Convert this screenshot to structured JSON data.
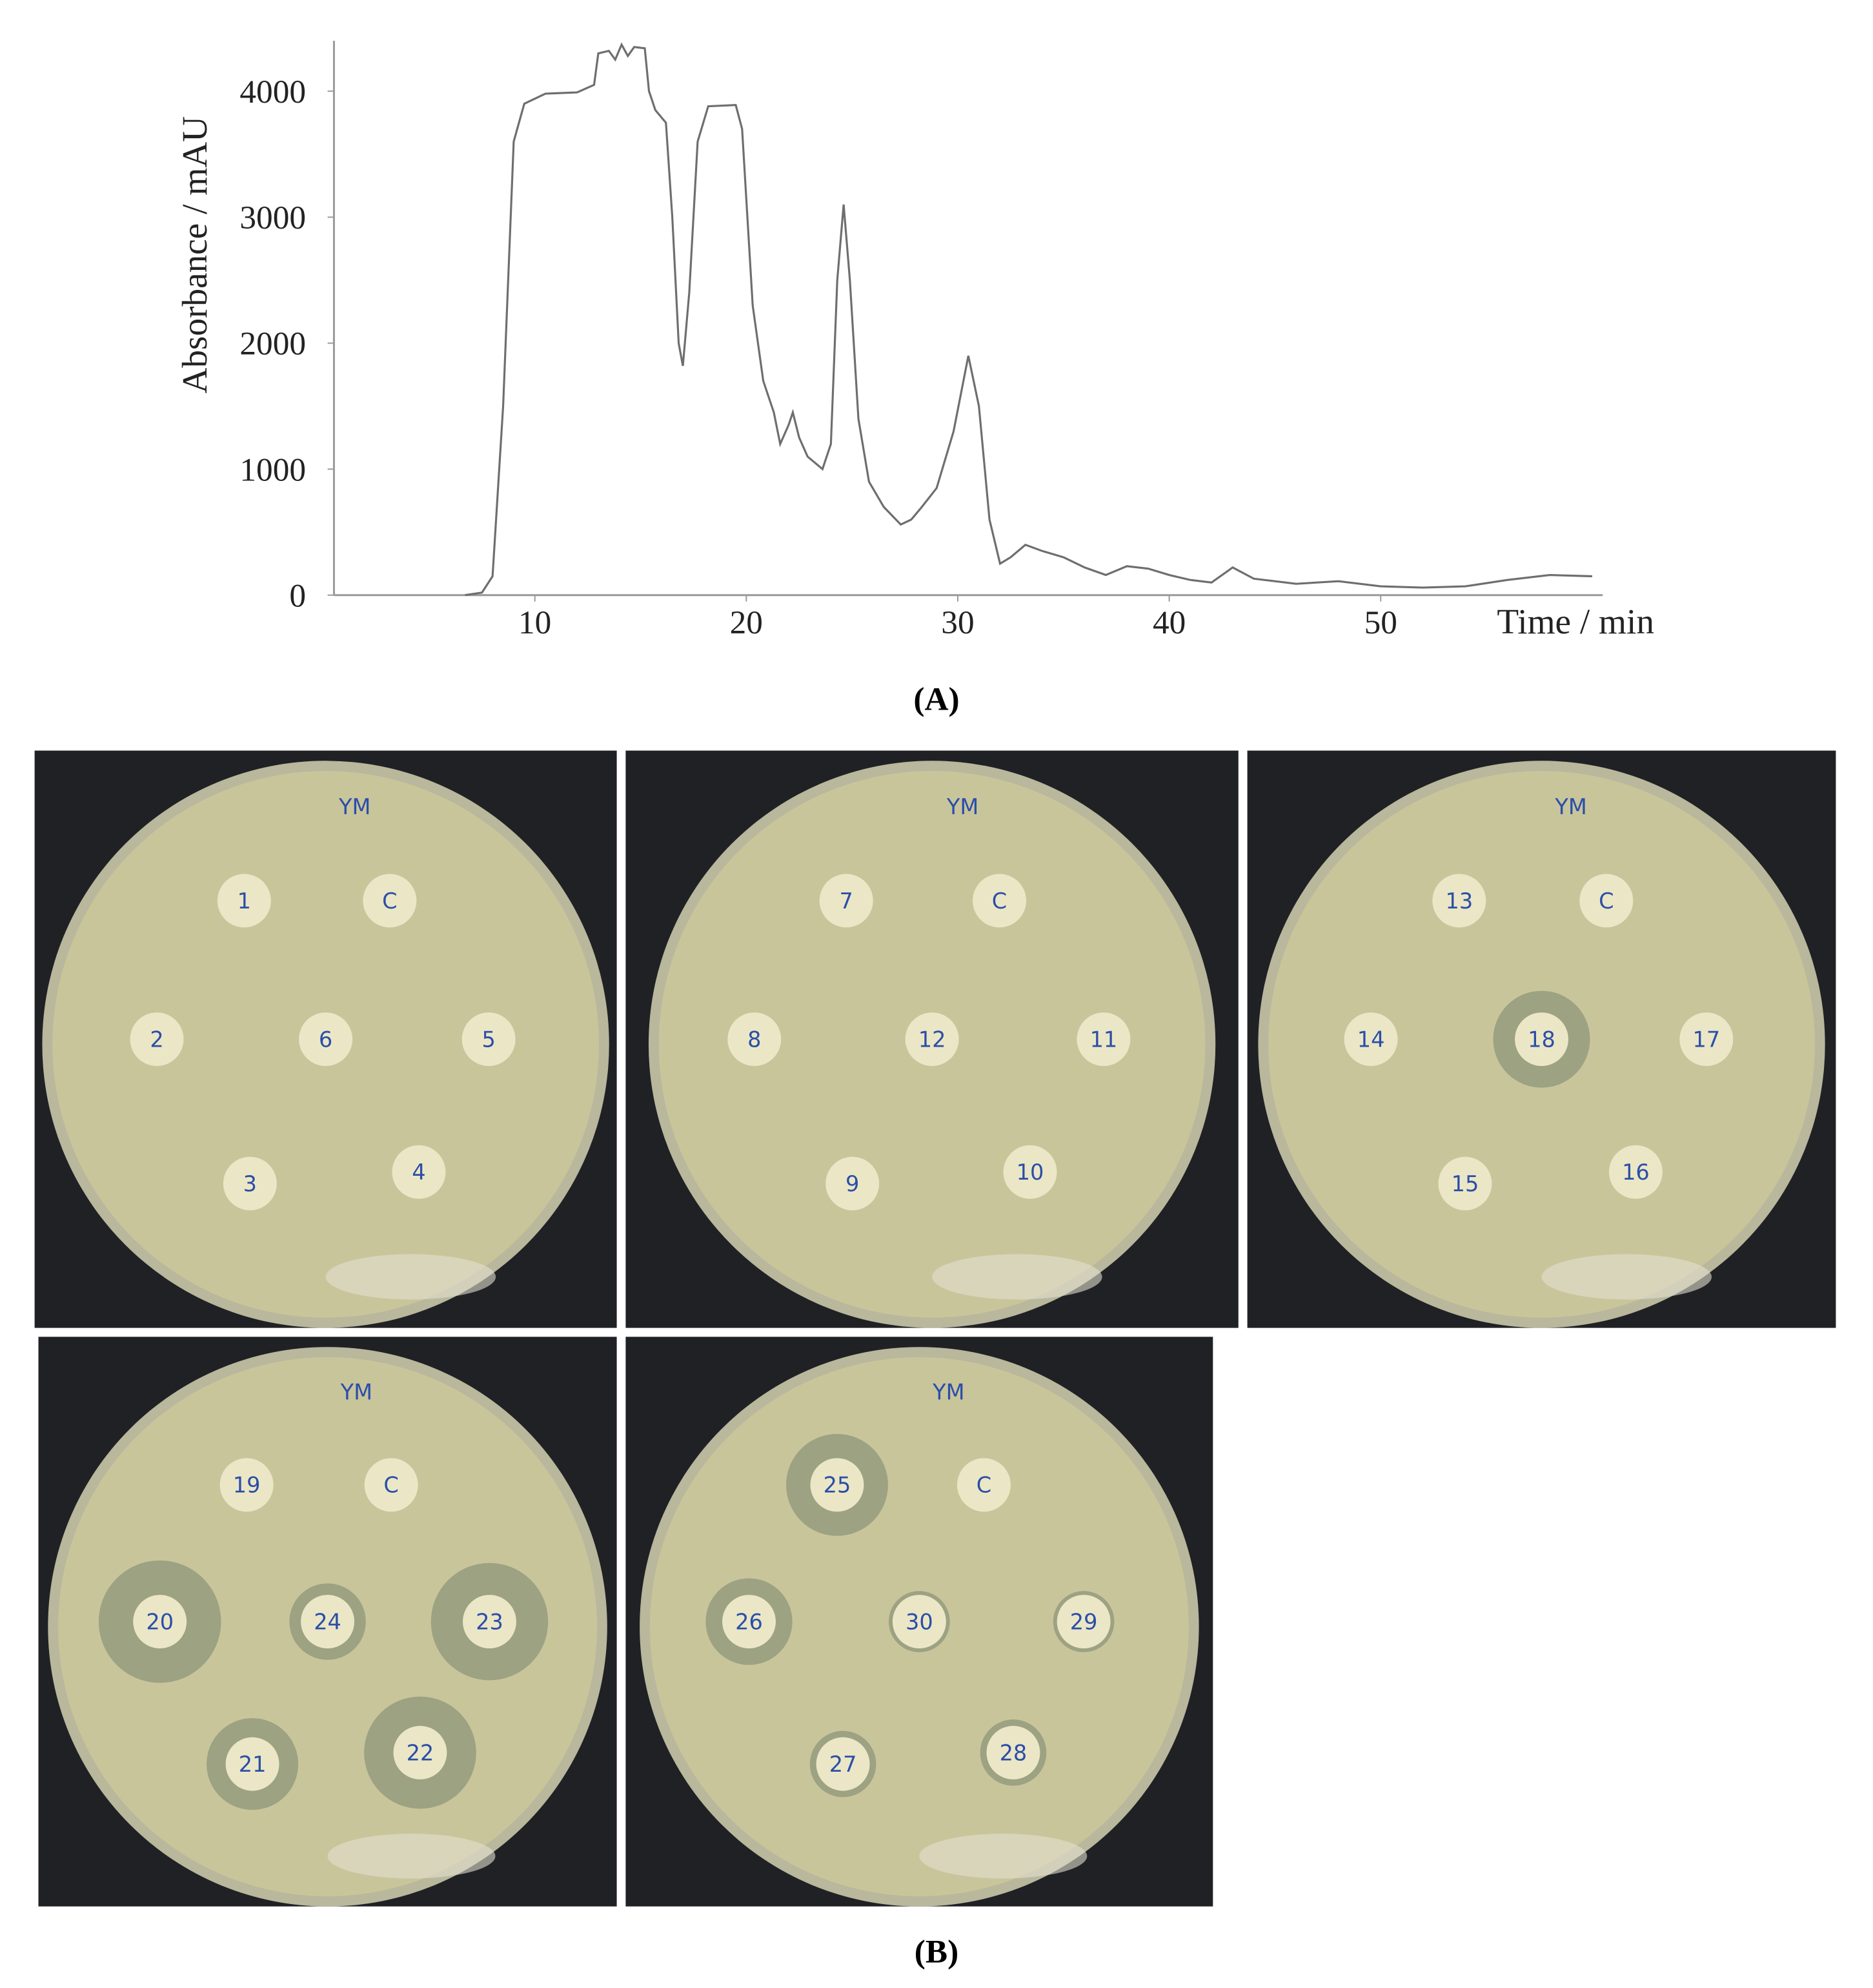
{
  "chart_data": {
    "type": "line",
    "panel_label": "(A)",
    "y_label": "Absorbance / mAU",
    "x_label": "Time / min",
    "color": "#6e6e6e",
    "xlim": [
      0.5,
      60.5
    ],
    "xticks": [
      10,
      20,
      30,
      40,
      50
    ],
    "ylim": [
      0,
      4400
    ],
    "yticks": [
      0,
      1000,
      2000,
      3000,
      4000
    ],
    "x": [
      6.7,
      7.5,
      8.0,
      8.5,
      9.0,
      9.5,
      10.5,
      12,
      12.8,
      13.0,
      13.5,
      13.8,
      14.1,
      14.4,
      14.7,
      15.2,
      15.4,
      15.7,
      16.2,
      16.5,
      16.8,
      17.0,
      17.3,
      17.7,
      18.2,
      19.5,
      19.8,
      20.3,
      20.8,
      21.3,
      21.6,
      22.0,
      22.2,
      22.5,
      22.9,
      23.6,
      24.0,
      24.3,
      24.6,
      24.9,
      25.3,
      25.8,
      26.5,
      27.3,
      27.8,
      28.3,
      29.0,
      29.8,
      30.5,
      31.0,
      31.5,
      32.0,
      32.5,
      33.2,
      34.0,
      35.0,
      36.0,
      37.0,
      38.0,
      39.0,
      40.0,
      41.0,
      42.0,
      43.0,
      44.0,
      45.0,
      46.0,
      48.0,
      50.0,
      52.0,
      54.0,
      56.0,
      58.0,
      60.0
    ],
    "values": [
      0,
      20,
      150,
      1500,
      3600,
      3900,
      3980,
      3990,
      4050,
      4300,
      4320,
      4250,
      4370,
      4280,
      4350,
      4340,
      4000,
      3850,
      3750,
      3000,
      2000,
      1820,
      2400,
      3600,
      3880,
      3890,
      3700,
      2300,
      1700,
      1450,
      1200,
      1350,
      1450,
      1250,
      1100,
      1000,
      1200,
      2500,
      3100,
      2500,
      1400,
      900,
      700,
      560,
      600,
      700,
      850,
      1300,
      1900,
      1500,
      600,
      250,
      300,
      400,
      350,
      300,
      220,
      160,
      230,
      210,
      160,
      120,
      100,
      220,
      130,
      110,
      90,
      110,
      70,
      60,
      70,
      120,
      160,
      150
    ]
  },
  "panel_b_label": "(B)",
  "plates": [
    {
      "label": "YM",
      "disks": [
        "1",
        "C",
        "2",
        "6",
        "5",
        "3",
        "4"
      ]
    },
    {
      "label": "YM",
      "disks": [
        "7",
        "C",
        "8",
        "12",
        "11",
        "9",
        "10"
      ]
    },
    {
      "label": "YM",
      "disks": [
        "13",
        "C",
        "14",
        "18",
        "17",
        "15",
        "16"
      ]
    },
    {
      "label": "YM",
      "disks": [
        "19",
        "C",
        "20",
        "24",
        "23",
        "21",
        "22"
      ]
    },
    {
      "label": "YM",
      "disks": [
        "25",
        "C",
        "26",
        "30",
        "29",
        "27",
        "28"
      ]
    }
  ]
}
